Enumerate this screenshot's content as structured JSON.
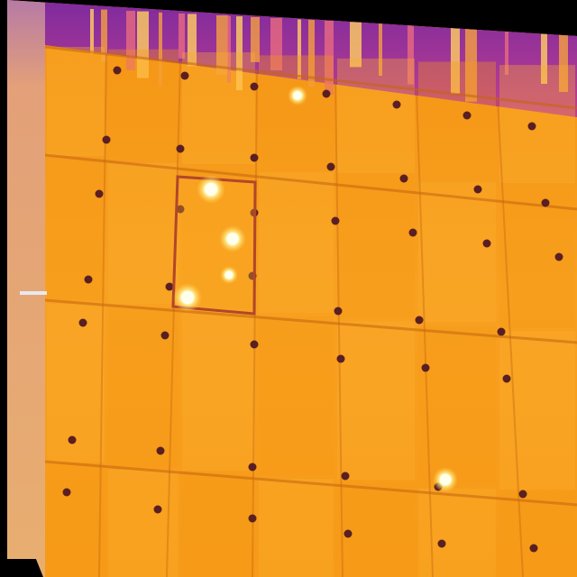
{
  "image": {
    "kind": "thermal infrared aerial view of a solar panel array",
    "palette": {
      "background_black": "#000000",
      "panel_orange": "#F79A16",
      "panel_orange_light": "#FBB02E",
      "panel_orange_dark": "#E5810E",
      "seam_dark": "#C4650E",
      "sky_purple": "#8C2A9C",
      "sky_magenta": "#B0369A",
      "edge_strip": "#E8A86C",
      "edge_strip_top": "#B77AA5",
      "hotspot_core": "#FFFFF0",
      "hotspot_glow": "#FFE46A",
      "bolt_dark": "#5A1F22",
      "anomaly_outline": "#B2462A"
    },
    "hotspot_count": 6,
    "anomaly_cells_marked": 1
  }
}
